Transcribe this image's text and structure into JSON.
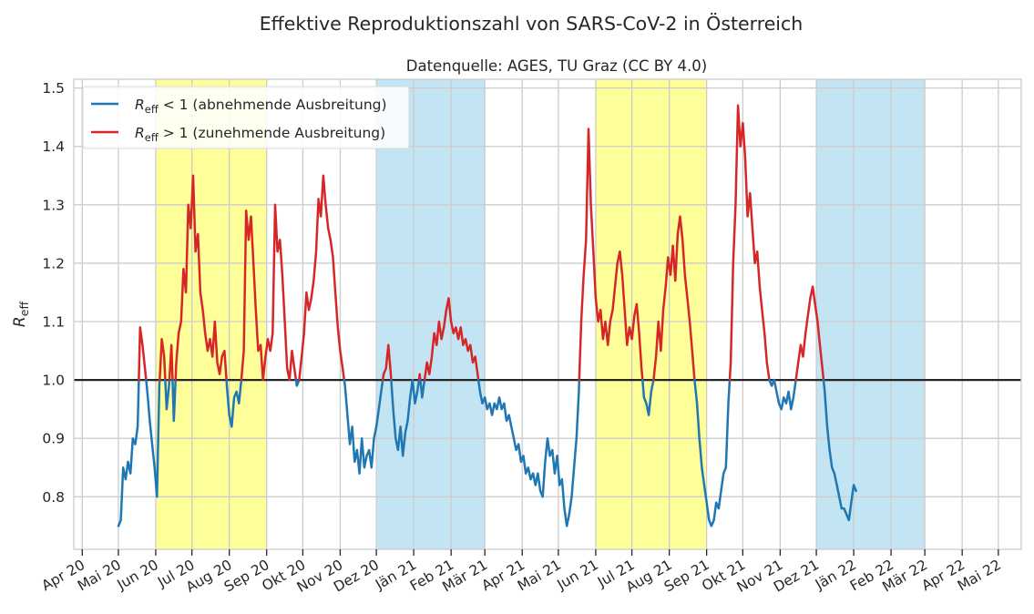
{
  "chart_data": {
    "type": "line",
    "title": "Effektive Reproduktionszahl von SARS-CoV-2 in Österreich",
    "subtitle": "Datenquelle: AGES, TU Graz (CC BY 4.0)",
    "ylabel_main": "R",
    "ylabel_sub": "eff",
    "xlim": [
      "2020-03-25",
      "2022-05-20"
    ],
    "ylim": [
      0.71,
      1.515
    ],
    "y_ticks": [
      0.8,
      0.9,
      1.0,
      1.1,
      1.2,
      1.3,
      1.4,
      1.5
    ],
    "y_tick_labels": [
      "0.8",
      "0.9",
      "1.0",
      "1.1",
      "1.2",
      "1.3",
      "1.4",
      "1.5"
    ],
    "x_ticks": [
      {
        "date": "2020-04-01",
        "label": "Apr 20"
      },
      {
        "date": "2020-05-01",
        "label": "Mai 20"
      },
      {
        "date": "2020-06-01",
        "label": "Jun 20"
      },
      {
        "date": "2020-07-01",
        "label": "Jul 20"
      },
      {
        "date": "2020-08-01",
        "label": "Aug 20"
      },
      {
        "date": "2020-09-01",
        "label": "Sep 20"
      },
      {
        "date": "2020-10-01",
        "label": "Okt 20"
      },
      {
        "date": "2020-11-01",
        "label": "Nov 20"
      },
      {
        "date": "2020-12-01",
        "label": "Dez 20"
      },
      {
        "date": "2021-01-01",
        "label": "Jän 21"
      },
      {
        "date": "2021-02-01",
        "label": "Feb 21"
      },
      {
        "date": "2021-03-01",
        "label": "Mär 21"
      },
      {
        "date": "2021-04-01",
        "label": "Apr 21"
      },
      {
        "date": "2021-05-01",
        "label": "Mai 21"
      },
      {
        "date": "2021-06-01",
        "label": "Jun 21"
      },
      {
        "date": "2021-07-01",
        "label": "Jul 21"
      },
      {
        "date": "2021-08-01",
        "label": "Aug 21"
      },
      {
        "date": "2021-09-01",
        "label": "Sep 21"
      },
      {
        "date": "2021-10-01",
        "label": "Okt 21"
      },
      {
        "date": "2021-11-01",
        "label": "Nov 21"
      },
      {
        "date": "2021-12-01",
        "label": "Dez 21"
      },
      {
        "date": "2022-01-01",
        "label": "Jän 22"
      },
      {
        "date": "2022-02-01",
        "label": "Feb 22"
      },
      {
        "date": "2022-03-01",
        "label": "Mär 22"
      },
      {
        "date": "2022-04-01",
        "label": "Apr 22"
      },
      {
        "date": "2022-05-01",
        "label": "Mai 22"
      }
    ],
    "grid": true,
    "legend_position": "top-left",
    "reference_line": {
      "y": 1.0,
      "color": "#262626"
    },
    "seasons": [
      {
        "type": "summer",
        "start": "2020-06-01",
        "end": "2020-09-01",
        "color": "#ffff99"
      },
      {
        "type": "winter",
        "start": "2020-12-01",
        "end": "2021-03-01",
        "color": "#c3e4f2"
      },
      {
        "type": "summer",
        "start": "2021-06-01",
        "end": "2021-09-01",
        "color": "#ffff99"
      },
      {
        "type": "winter",
        "start": "2021-12-01",
        "end": "2022-03-01",
        "color": "#c3e4f2"
      }
    ],
    "series": [
      {
        "name_main": "R",
        "name_sub": "eff",
        "name_rest": " < 1 (abnehmende Ausbreitung)",
        "color": "#1f77b4",
        "condition": "below"
      },
      {
        "name_main": "R",
        "name_sub": "eff",
        "name_rest": " > 1 (zunehmende Ausbreitung)",
        "color": "#d62728",
        "condition": "above"
      }
    ],
    "points": [
      [
        "2020-05-01",
        0.75
      ],
      [
        "2020-05-03",
        0.76
      ],
      [
        "2020-05-05",
        0.85
      ],
      [
        "2020-05-07",
        0.83
      ],
      [
        "2020-05-09",
        0.86
      ],
      [
        "2020-05-11",
        0.84
      ],
      [
        "2020-05-13",
        0.9
      ],
      [
        "2020-05-15",
        0.89
      ],
      [
        "2020-05-17",
        0.92
      ],
      [
        "2020-05-19",
        1.09
      ],
      [
        "2020-05-21",
        1.06
      ],
      [
        "2020-05-23",
        1.02
      ],
      [
        "2020-05-25",
        0.98
      ],
      [
        "2020-05-27",
        0.93
      ],
      [
        "2020-05-29",
        0.89
      ],
      [
        "2020-05-31",
        0.85
      ],
      [
        "2020-06-02",
        0.8
      ],
      [
        "2020-06-04",
        0.99
      ],
      [
        "2020-06-06",
        1.07
      ],
      [
        "2020-06-08",
        1.04
      ],
      [
        "2020-06-10",
        0.95
      ],
      [
        "2020-06-12",
        0.99
      ],
      [
        "2020-06-14",
        1.06
      ],
      [
        "2020-06-16",
        0.93
      ],
      [
        "2020-06-18",
        1.03
      ],
      [
        "2020-06-20",
        1.08
      ],
      [
        "2020-06-22",
        1.1
      ],
      [
        "2020-06-24",
        1.19
      ],
      [
        "2020-06-26",
        1.15
      ],
      [
        "2020-06-28",
        1.3
      ],
      [
        "2020-06-30",
        1.26
      ],
      [
        "2020-07-02",
        1.35
      ],
      [
        "2020-07-04",
        1.22
      ],
      [
        "2020-07-06",
        1.25
      ],
      [
        "2020-07-08",
        1.15
      ],
      [
        "2020-07-10",
        1.12
      ],
      [
        "2020-07-12",
        1.08
      ],
      [
        "2020-07-14",
        1.05
      ],
      [
        "2020-07-16",
        1.07
      ],
      [
        "2020-07-18",
        1.04
      ],
      [
        "2020-07-20",
        1.1
      ],
      [
        "2020-07-22",
        1.03
      ],
      [
        "2020-07-24",
        1.01
      ],
      [
        "2020-07-26",
        1.04
      ],
      [
        "2020-07-28",
        1.05
      ],
      [
        "2020-07-30",
        0.99
      ],
      [
        "2020-08-01",
        0.94
      ],
      [
        "2020-08-03",
        0.92
      ],
      [
        "2020-08-05",
        0.97
      ],
      [
        "2020-08-07",
        0.98
      ],
      [
        "2020-08-09",
        0.96
      ],
      [
        "2020-08-11",
        1.0
      ],
      [
        "2020-08-13",
        1.05
      ],
      [
        "2020-08-15",
        1.29
      ],
      [
        "2020-08-17",
        1.24
      ],
      [
        "2020-08-19",
        1.28
      ],
      [
        "2020-08-21",
        1.2
      ],
      [
        "2020-08-23",
        1.12
      ],
      [
        "2020-08-25",
        1.05
      ],
      [
        "2020-08-27",
        1.06
      ],
      [
        "2020-08-29",
        1.0
      ],
      [
        "2020-08-31",
        1.04
      ],
      [
        "2020-09-02",
        1.07
      ],
      [
        "2020-09-04",
        1.05
      ],
      [
        "2020-09-06",
        1.08
      ],
      [
        "2020-09-08",
        1.3
      ],
      [
        "2020-09-10",
        1.22
      ],
      [
        "2020-09-12",
        1.24
      ],
      [
        "2020-09-14",
        1.18
      ],
      [
        "2020-09-16",
        1.1
      ],
      [
        "2020-09-18",
        1.02
      ],
      [
        "2020-09-20",
        1.0
      ],
      [
        "2020-09-22",
        1.05
      ],
      [
        "2020-09-24",
        1.02
      ],
      [
        "2020-09-26",
        0.99
      ],
      [
        "2020-09-28",
        1.0
      ],
      [
        "2020-09-30",
        1.04
      ],
      [
        "2020-10-02",
        1.08
      ],
      [
        "2020-10-04",
        1.15
      ],
      [
        "2020-10-06",
        1.12
      ],
      [
        "2020-10-08",
        1.14
      ],
      [
        "2020-10-10",
        1.17
      ],
      [
        "2020-10-12",
        1.22
      ],
      [
        "2020-10-14",
        1.31
      ],
      [
        "2020-10-16",
        1.28
      ],
      [
        "2020-10-18",
        1.35
      ],
      [
        "2020-10-20",
        1.3
      ],
      [
        "2020-10-22",
        1.26
      ],
      [
        "2020-10-24",
        1.24
      ],
      [
        "2020-10-26",
        1.21
      ],
      [
        "2020-10-28",
        1.15
      ],
      [
        "2020-10-30",
        1.09
      ],
      [
        "2020-11-01",
        1.05
      ],
      [
        "2020-11-03",
        1.02
      ],
      [
        "2020-11-05",
        0.99
      ],
      [
        "2020-11-07",
        0.94
      ],
      [
        "2020-11-09",
        0.89
      ],
      [
        "2020-11-11",
        0.92
      ],
      [
        "2020-11-13",
        0.86
      ],
      [
        "2020-11-15",
        0.88
      ],
      [
        "2020-11-17",
        0.84
      ],
      [
        "2020-11-19",
        0.9
      ],
      [
        "2020-11-21",
        0.85
      ],
      [
        "2020-11-23",
        0.87
      ],
      [
        "2020-11-25",
        0.88
      ],
      [
        "2020-11-27",
        0.85
      ],
      [
        "2020-11-29",
        0.9
      ],
      [
        "2020-12-01",
        0.92
      ],
      [
        "2020-12-03",
        0.95
      ],
      [
        "2020-12-05",
        0.98
      ],
      [
        "2020-12-07",
        1.01
      ],
      [
        "2020-12-09",
        1.02
      ],
      [
        "2020-12-11",
        1.06
      ],
      [
        "2020-12-13",
        1.01
      ],
      [
        "2020-12-15",
        0.95
      ],
      [
        "2020-12-17",
        0.9
      ],
      [
        "2020-12-19",
        0.88
      ],
      [
        "2020-12-21",
        0.92
      ],
      [
        "2020-12-23",
        0.87
      ],
      [
        "2020-12-25",
        0.91
      ],
      [
        "2020-12-27",
        0.93
      ],
      [
        "2020-12-29",
        0.97
      ],
      [
        "2020-12-31",
        1.0
      ],
      [
        "2021-01-02",
        0.96
      ],
      [
        "2021-01-04",
        0.98
      ],
      [
        "2021-01-06",
        1.01
      ],
      [
        "2021-01-08",
        0.97
      ],
      [
        "2021-01-10",
        1.0
      ],
      [
        "2021-01-12",
        1.03
      ],
      [
        "2021-01-14",
        1.01
      ],
      [
        "2021-01-16",
        1.04
      ],
      [
        "2021-01-18",
        1.08
      ],
      [
        "2021-01-20",
        1.06
      ],
      [
        "2021-01-22",
        1.1
      ],
      [
        "2021-01-24",
        1.07
      ],
      [
        "2021-01-26",
        1.09
      ],
      [
        "2021-01-28",
        1.12
      ],
      [
        "2021-01-30",
        1.14
      ],
      [
        "2021-02-01",
        1.1
      ],
      [
        "2021-02-03",
        1.08
      ],
      [
        "2021-02-05",
        1.09
      ],
      [
        "2021-02-07",
        1.07
      ],
      [
        "2021-02-09",
        1.09
      ],
      [
        "2021-02-11",
        1.06
      ],
      [
        "2021-02-13",
        1.07
      ],
      [
        "2021-02-15",
        1.05
      ],
      [
        "2021-02-17",
        1.06
      ],
      [
        "2021-02-19",
        1.03
      ],
      [
        "2021-02-21",
        1.04
      ],
      [
        "2021-02-23",
        1.01
      ],
      [
        "2021-02-25",
        0.98
      ],
      [
        "2021-02-27",
        0.96
      ],
      [
        "2021-03-01",
        0.97
      ],
      [
        "2021-03-03",
        0.95
      ],
      [
        "2021-03-05",
        0.96
      ],
      [
        "2021-03-07",
        0.94
      ],
      [
        "2021-03-09",
        0.96
      ],
      [
        "2021-03-11",
        0.95
      ],
      [
        "2021-03-13",
        0.97
      ],
      [
        "2021-03-15",
        0.95
      ],
      [
        "2021-03-17",
        0.96
      ],
      [
        "2021-03-19",
        0.93
      ],
      [
        "2021-03-21",
        0.94
      ],
      [
        "2021-03-23",
        0.92
      ],
      [
        "2021-03-25",
        0.9
      ],
      [
        "2021-03-27",
        0.88
      ],
      [
        "2021-03-29",
        0.89
      ],
      [
        "2021-03-31",
        0.86
      ],
      [
        "2021-04-02",
        0.87
      ],
      [
        "2021-04-04",
        0.84
      ],
      [
        "2021-04-06",
        0.85
      ],
      [
        "2021-04-08",
        0.83
      ],
      [
        "2021-04-10",
        0.84
      ],
      [
        "2021-04-12",
        0.82
      ],
      [
        "2021-04-14",
        0.84
      ],
      [
        "2021-04-16",
        0.81
      ],
      [
        "2021-04-18",
        0.8
      ],
      [
        "2021-04-20",
        0.86
      ],
      [
        "2021-04-22",
        0.9
      ],
      [
        "2021-04-24",
        0.87
      ],
      [
        "2021-04-26",
        0.88
      ],
      [
        "2021-04-28",
        0.84
      ],
      [
        "2021-04-30",
        0.87
      ],
      [
        "2021-05-02",
        0.82
      ],
      [
        "2021-05-04",
        0.83
      ],
      [
        "2021-05-06",
        0.78
      ],
      [
        "2021-05-08",
        0.75
      ],
      [
        "2021-05-10",
        0.77
      ],
      [
        "2021-05-12",
        0.8
      ],
      [
        "2021-05-14",
        0.85
      ],
      [
        "2021-05-16",
        0.9
      ],
      [
        "2021-05-18",
        0.98
      ],
      [
        "2021-05-20",
        1.1
      ],
      [
        "2021-05-22",
        1.18
      ],
      [
        "2021-05-24",
        1.24
      ],
      [
        "2021-05-26",
        1.43
      ],
      [
        "2021-05-28",
        1.3
      ],
      [
        "2021-05-30",
        1.22
      ],
      [
        "2021-06-01",
        1.14
      ],
      [
        "2021-06-03",
        1.1
      ],
      [
        "2021-06-05",
        1.12
      ],
      [
        "2021-06-07",
        1.07
      ],
      [
        "2021-06-09",
        1.1
      ],
      [
        "2021-06-11",
        1.06
      ],
      [
        "2021-06-13",
        1.1
      ],
      [
        "2021-06-15",
        1.12
      ],
      [
        "2021-06-17",
        1.16
      ],
      [
        "2021-06-19",
        1.2
      ],
      [
        "2021-06-21",
        1.22
      ],
      [
        "2021-06-23",
        1.18
      ],
      [
        "2021-06-25",
        1.12
      ],
      [
        "2021-06-27",
        1.06
      ],
      [
        "2021-06-29",
        1.09
      ],
      [
        "2021-07-01",
        1.07
      ],
      [
        "2021-07-03",
        1.11
      ],
      [
        "2021-07-05",
        1.13
      ],
      [
        "2021-07-07",
        1.08
      ],
      [
        "2021-07-09",
        1.02
      ],
      [
        "2021-07-11",
        0.97
      ],
      [
        "2021-07-13",
        0.96
      ],
      [
        "2021-07-15",
        0.94
      ],
      [
        "2021-07-17",
        0.98
      ],
      [
        "2021-07-19",
        1.0
      ],
      [
        "2021-07-21",
        1.04
      ],
      [
        "2021-07-23",
        1.1
      ],
      [
        "2021-07-25",
        1.05
      ],
      [
        "2021-07-27",
        1.12
      ],
      [
        "2021-07-29",
        1.16
      ],
      [
        "2021-07-31",
        1.21
      ],
      [
        "2021-08-02",
        1.18
      ],
      [
        "2021-08-04",
        1.23
      ],
      [
        "2021-08-06",
        1.17
      ],
      [
        "2021-08-08",
        1.25
      ],
      [
        "2021-08-10",
        1.28
      ],
      [
        "2021-08-12",
        1.24
      ],
      [
        "2021-08-14",
        1.18
      ],
      [
        "2021-08-16",
        1.14
      ],
      [
        "2021-08-18",
        1.1
      ],
      [
        "2021-08-20",
        1.05
      ],
      [
        "2021-08-22",
        1.0
      ],
      [
        "2021-08-24",
        0.96
      ],
      [
        "2021-08-26",
        0.9
      ],
      [
        "2021-08-28",
        0.85
      ],
      [
        "2021-08-30",
        0.82
      ],
      [
        "2021-09-01",
        0.79
      ],
      [
        "2021-09-03",
        0.76
      ],
      [
        "2021-09-05",
        0.75
      ],
      [
        "2021-09-07",
        0.76
      ],
      [
        "2021-09-09",
        0.79
      ],
      [
        "2021-09-11",
        0.78
      ],
      [
        "2021-09-13",
        0.81
      ],
      [
        "2021-09-15",
        0.84
      ],
      [
        "2021-09-17",
        0.85
      ],
      [
        "2021-09-19",
        0.96
      ],
      [
        "2021-09-21",
        1.03
      ],
      [
        "2021-09-23",
        1.2
      ],
      [
        "2021-09-25",
        1.3
      ],
      [
        "2021-09-27",
        1.47
      ],
      [
        "2021-09-29",
        1.4
      ],
      [
        "2021-10-01",
        1.44
      ],
      [
        "2021-10-03",
        1.38
      ],
      [
        "2021-10-05",
        1.28
      ],
      [
        "2021-10-07",
        1.32
      ],
      [
        "2021-10-09",
        1.26
      ],
      [
        "2021-10-11",
        1.2
      ],
      [
        "2021-10-13",
        1.22
      ],
      [
        "2021-10-15",
        1.16
      ],
      [
        "2021-10-17",
        1.12
      ],
      [
        "2021-10-19",
        1.08
      ],
      [
        "2021-10-21",
        1.03
      ],
      [
        "2021-10-23",
        1.0
      ],
      [
        "2021-10-25",
        0.99
      ],
      [
        "2021-10-27",
        1.0
      ],
      [
        "2021-10-29",
        0.98
      ],
      [
        "2021-10-31",
        0.96
      ],
      [
        "2021-11-02",
        0.95
      ],
      [
        "2021-11-04",
        0.97
      ],
      [
        "2021-11-06",
        0.96
      ],
      [
        "2021-11-08",
        0.98
      ],
      [
        "2021-11-10",
        0.95
      ],
      [
        "2021-11-12",
        0.97
      ],
      [
        "2021-11-14",
        1.0
      ],
      [
        "2021-11-16",
        1.03
      ],
      [
        "2021-11-18",
        1.06
      ],
      [
        "2021-11-20",
        1.04
      ],
      [
        "2021-11-22",
        1.08
      ],
      [
        "2021-11-24",
        1.11
      ],
      [
        "2021-11-26",
        1.14
      ],
      [
        "2021-11-28",
        1.16
      ],
      [
        "2021-11-30",
        1.13
      ],
      [
        "2021-12-02",
        1.1
      ],
      [
        "2021-12-04",
        1.06
      ],
      [
        "2021-12-06",
        1.02
      ],
      [
        "2021-12-08",
        0.98
      ],
      [
        "2021-12-10",
        0.92
      ],
      [
        "2021-12-12",
        0.88
      ],
      [
        "2021-12-14",
        0.85
      ],
      [
        "2021-12-16",
        0.84
      ],
      [
        "2021-12-18",
        0.82
      ],
      [
        "2021-12-20",
        0.8
      ],
      [
        "2021-12-22",
        0.78
      ],
      [
        "2021-12-24",
        0.78
      ],
      [
        "2021-12-26",
        0.77
      ],
      [
        "2021-12-28",
        0.76
      ],
      [
        "2021-12-30",
        0.79
      ],
      [
        "2022-01-01",
        0.82
      ],
      [
        "2022-01-03",
        0.81
      ]
    ]
  }
}
